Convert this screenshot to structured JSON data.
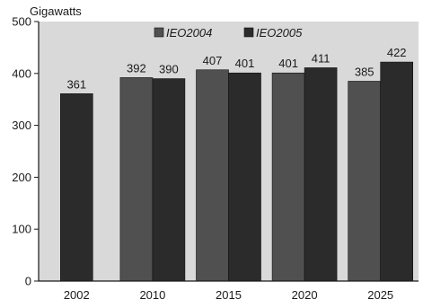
{
  "chart_data": {
    "type": "bar",
    "ylabel": "Gigawatts",
    "xlabel": "",
    "ylim": [
      0,
      500
    ],
    "yticks": [
      0,
      100,
      200,
      300,
      400,
      500
    ],
    "categories": [
      "2002",
      "2010",
      "2015",
      "2020",
      "2025"
    ],
    "grid": false,
    "legend_position": "top",
    "series": [
      {
        "name": "IEO2004",
        "values": [
          null,
          392,
          407,
          401,
          385
        ],
        "color": "#505050"
      },
      {
        "name": "IEO2005",
        "values": [
          361,
          390,
          401,
          411,
          422
        ],
        "color": "#2b2b2b"
      }
    ],
    "plot_background": "#d9d9d9"
  }
}
